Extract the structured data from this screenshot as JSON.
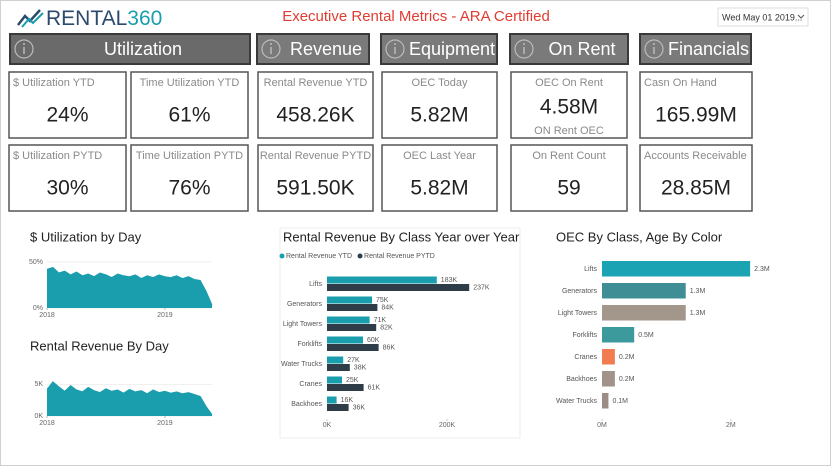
{
  "header": {
    "logo": "RENTAL",
    "logo_accent": "360",
    "title": "Executive Rental Metrics - ARA Certified",
    "date_filter": "Wed May 01 2019..."
  },
  "tabs": [
    "Utilization",
    "Revenue",
    "Equipment",
    "On Rent",
    "Financials"
  ],
  "cards": [
    {
      "label": "$ Utilization  YTD",
      "value": "24%"
    },
    {
      "label": "Time Utilization  YTD",
      "value": "61%"
    },
    {
      "label": "Rental Revenue YTD",
      "value": "458.26K"
    },
    {
      "label": "OEC Today",
      "value": "5.82M"
    },
    {
      "label": "OEC On Rent",
      "value": "4.58M",
      "sublabel": "ON Rent OEC"
    },
    {
      "label": "Casn On Hand",
      "value": "165.99M"
    },
    {
      "label": "$ Utilization  PYTD",
      "value": "30%"
    },
    {
      "label": "Time Utilization  PYTD",
      "value": "76%"
    },
    {
      "label": "Rental Revenue PYTD",
      "value": "591.50K"
    },
    {
      "label": "OEC  Last Year",
      "value": "5.82M"
    },
    {
      "label": "On Rent Count",
      "value": "59"
    },
    {
      "label": "Accounts Receivable",
      "value": "28.85M"
    }
  ],
  "chart_data": [
    {
      "type": "area",
      "title": "$ Utilization by Day",
      "color": "#1a9eae",
      "x": [
        2018,
        2018.05,
        2018.1,
        2018.15,
        2018.2,
        2018.25,
        2018.3,
        2018.35,
        2018.4,
        2018.45,
        2018.5,
        2018.55,
        2018.6,
        2018.65,
        2018.7,
        2018.75,
        2018.8,
        2018.85,
        2018.9,
        2018.95,
        2019,
        2019.05,
        2019.1,
        2019.15,
        2019.2,
        2019.25,
        2019.3,
        2019.35,
        2019.4
      ],
      "values": [
        42,
        44,
        38,
        40,
        36,
        39,
        35,
        37,
        34,
        38,
        36,
        33,
        37,
        35,
        34,
        36,
        32,
        35,
        33,
        36,
        34,
        33,
        35,
        32,
        34,
        31,
        30,
        18,
        3
      ],
      "xlim": [
        2018,
        2019.4
      ],
      "xticks": [
        2018,
        2019
      ],
      "ylim": [
        0,
        50
      ],
      "yticks": [
        {
          "value": 0,
          "label": "0%"
        },
        {
          "value": 50,
          "label": "50%"
        }
      ]
    },
    {
      "type": "area",
      "title": "Rental Revenue By Day",
      "color": "#1a9eae",
      "x": [
        2018,
        2018.05,
        2018.1,
        2018.15,
        2018.2,
        2018.25,
        2018.3,
        2018.35,
        2018.4,
        2018.45,
        2018.5,
        2018.55,
        2018.6,
        2018.65,
        2018.7,
        2018.75,
        2018.8,
        2018.85,
        2018.9,
        2018.95,
        2019,
        2019.05,
        2019.1,
        2019.15,
        2019.2,
        2019.25,
        2019.3,
        2019.35,
        2019.4
      ],
      "values": [
        4200,
        5400,
        4600,
        3900,
        4800,
        4100,
        3800,
        4500,
        4000,
        3700,
        4300,
        3900,
        4100,
        3600,
        4200,
        3800,
        4000,
        3500,
        4100,
        3700,
        3900,
        3600,
        3800,
        3500,
        3700,
        3400,
        3100,
        1500,
        200
      ],
      "xlim": [
        2018,
        2019.4
      ],
      "xticks": [
        2018,
        2019
      ],
      "ylim": [
        0,
        6000
      ],
      "yticks": [
        {
          "value": 0,
          "label": "0K"
        },
        {
          "value": 5000,
          "label": "5K"
        }
      ]
    },
    {
      "type": "hbar",
      "title": "Rental Revenue By Class Year over Year",
      "categories": [
        "Lifts",
        "Generators",
        "Light Towers",
        "Forklifts",
        "Water Trucks",
        "Cranes",
        "Backhoes"
      ],
      "series": [
        {
          "name": "Rental Revenue YTD",
          "color": "#1a9eae",
          "values": [
            183000,
            75000,
            71000,
            60000,
            27000,
            25000,
            16000
          ],
          "value_labels": [
            "183K",
            "75K",
            "71K",
            "60K",
            "27K",
            "25K",
            "16K"
          ]
        },
        {
          "name": "Rental Revenue PYTD",
          "color": "#2e3d48",
          "values": [
            237000,
            84000,
            82000,
            86000,
            38000,
            61000,
            36000
          ],
          "value_labels": [
            "237K",
            "84K",
            "82K",
            "86K",
            "38K",
            "61K",
            "36K"
          ]
        }
      ],
      "xlim": [
        0,
        300000
      ],
      "xticks": [
        {
          "value": 0,
          "label": "0K"
        },
        {
          "value": 200000,
          "label": "200K"
        }
      ]
    },
    {
      "type": "hbar",
      "title": "OEC By Class, Age By Color",
      "categories": [
        "Lifts",
        "Generators",
        "Light Towers",
        "Forklifts",
        "Cranes",
        "Backhoes",
        "Water Trucks"
      ],
      "values": [
        2300000,
        1300000,
        1300000,
        500000,
        200000,
        200000,
        100000
      ],
      "value_labels": [
        "2.3M",
        "1.3M",
        "1.3M",
        "0.5M",
        "0.2M",
        "0.2M",
        "0.1M"
      ],
      "colors": [
        "#1aa3b3",
        "#3f8e96",
        "#a3968a",
        "#3d9a9c",
        "#f37b52",
        "#a3928a",
        "#9c8c86"
      ],
      "xlim": [
        0,
        2500000
      ],
      "xticks": [
        {
          "value": 0,
          "label": "0M"
        },
        {
          "value": 2000000,
          "label": "2M"
        }
      ]
    }
  ]
}
